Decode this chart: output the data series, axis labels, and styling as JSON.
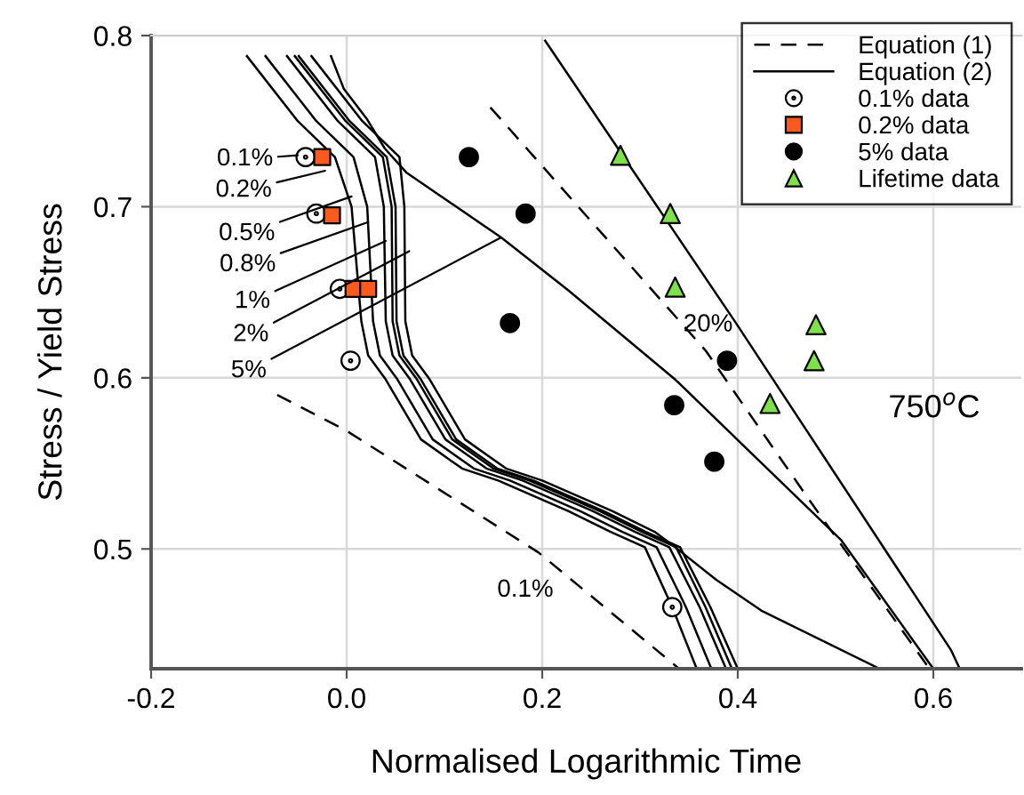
{
  "chart_data": {
    "type": "line",
    "xlabel": "Normalised Logarithmic Time",
    "ylabel": "Stress / Yield Stress",
    "xlim": [
      -0.2,
      0.69
    ],
    "ylim": [
      0.43,
      0.8
    ],
    "xticks": [
      -0.2,
      {
        "value": 0,
        "label": "0.0"
      },
      0.2,
      0.4,
      0.6
    ],
    "yticks": [
      0.5,
      0.6,
      0.7,
      0.8
    ],
    "grid": true,
    "legend": "top right",
    "series": [
      {
        "name": "Equation (1)",
        "line_style": "dashed",
        "color": "#000000",
        "x": [
          -0.071,
          0.0,
          0.196,
          0.34
        ],
        "values": [
          0.59,
          0.569,
          0.498,
          0.43
        ]
      },
      {
        "line_style": "dashed",
        "color": "#000000",
        "x": [
          0.147,
          0.367,
          0.469,
          0.596
        ],
        "values": [
          0.758,
          0.616,
          0.532,
          0.43
        ]
      },
      {
        "name": "Equation (2)",
        "line_style": "solid",
        "color": "#000000",
        "x": [
          -0.102,
          -0.05,
          -0.012,
          0.005,
          0.015,
          0.022,
          0.04,
          0.076,
          0.118,
          0.155,
          0.227,
          0.27,
          0.305,
          0.333,
          0.358
        ],
        "values": [
          0.788,
          0.75,
          0.729,
          0.7,
          0.633,
          0.613,
          0.599,
          0.564,
          0.547,
          0.54,
          0.522,
          0.51,
          0.501,
          0.466,
          0.43
        ]
      },
      {
        "line_style": "solid",
        "color": "#000000",
        "x": [
          -0.083,
          -0.031,
          0.007,
          0.021,
          0.027,
          0.034,
          0.052,
          0.088,
          0.13,
          0.167,
          0.239,
          0.282,
          0.317,
          0.347,
          0.373
        ],
        "values": [
          0.788,
          0.75,
          0.729,
          0.7,
          0.633,
          0.613,
          0.599,
          0.564,
          0.547,
          0.54,
          0.522,
          0.51,
          0.501,
          0.466,
          0.43
        ]
      },
      {
        "line_style": "solid",
        "color": "#000000",
        "x": [
          -0.061,
          -0.009,
          0.029,
          0.038,
          0.04,
          0.047,
          0.065,
          0.101,
          0.143,
          0.18,
          0.252,
          0.295,
          0.33,
          0.361,
          0.388
        ],
        "values": [
          0.788,
          0.75,
          0.729,
          0.7,
          0.633,
          0.613,
          0.599,
          0.564,
          0.547,
          0.54,
          0.522,
          0.51,
          0.501,
          0.466,
          0.43
        ]
      },
      {
        "line_style": "solid",
        "color": "#000000",
        "x": [
          -0.053,
          -0.001,
          0.037,
          0.046,
          0.047,
          0.054,
          0.072,
          0.108,
          0.15,
          0.187,
          0.259,
          0.302,
          0.337,
          0.367,
          0.394
        ],
        "values": [
          0.788,
          0.75,
          0.729,
          0.7,
          0.633,
          0.613,
          0.599,
          0.564,
          0.547,
          0.54,
          0.522,
          0.51,
          0.501,
          0.466,
          0.43
        ]
      },
      {
        "line_style": "solid",
        "color": "#000000",
        "x": [
          -0.049,
          0.003,
          0.041,
          0.05,
          0.051,
          0.058,
          0.076,
          0.112,
          0.154,
          0.191,
          0.263,
          0.306,
          0.341,
          0.372,
          0.4
        ],
        "values": [
          0.788,
          0.75,
          0.729,
          0.7,
          0.633,
          0.613,
          0.599,
          0.564,
          0.547,
          0.54,
          0.522,
          0.51,
          0.501,
          0.466,
          0.43
        ]
      },
      {
        "line_style": "solid",
        "color": "#000000",
        "x": [
          -0.036,
          0.016,
          0.054,
          0.059,
          0.06,
          0.067,
          0.085,
          0.121,
          0.163,
          0.2,
          0.272,
          0.315,
          0.336,
          0.378,
          0.424,
          0.545
        ],
        "values": [
          0.788,
          0.75,
          0.729,
          0.7,
          0.633,
          0.613,
          0.599,
          0.564,
          0.547,
          0.54,
          0.522,
          0.51,
          0.501,
          0.482,
          0.464,
          0.43
        ]
      },
      {
        "line_style": "solid",
        "color": "#000000",
        "x": [
          -0.016,
          -0.003,
          0.021,
          0.039,
          0.061,
          0.158,
          0.227,
          0.336,
          0.506,
          0.6
        ],
        "values": [
          0.788,
          0.769,
          0.751,
          0.734,
          0.72,
          0.682,
          0.651,
          0.599,
          0.505,
          0.43
        ]
      },
      {
        "line_style": "solid",
        "color": "#000000",
        "x": [
          0.203,
          0.397,
          0.618,
          0.627
        ],
        "values": [
          0.797,
          0.633,
          0.441,
          0.43
        ]
      },
      {
        "name": "0.1% data",
        "type": "scatter",
        "marker": "circle",
        "color": "#ffffff",
        "x": [
          -0.042,
          -0.031,
          -0.007,
          0.004,
          0.333
        ],
        "values": [
          0.729,
          0.696,
          0.652,
          0.61,
          0.466
        ]
      },
      {
        "name": "0.2% data",
        "type": "scatter",
        "marker": "square",
        "color": "#fa5a1e",
        "x": [
          -0.025,
          -0.015,
          0.007,
          0.022
        ],
        "values": [
          0.729,
          0.695,
          0.652,
          0.652
        ]
      },
      {
        "name": "5% data",
        "type": "scatter",
        "marker": "circle",
        "color": "#000000",
        "x": [
          0.125,
          0.183,
          0.167,
          0.389,
          0.335,
          0.376
        ],
        "values": [
          0.729,
          0.696,
          0.632,
          0.61,
          0.584,
          0.551
        ]
      },
      {
        "name": "Lifetime data",
        "type": "scatter",
        "marker": "triangle",
        "color": "#80e04b",
        "x": [
          0.28,
          0.331,
          0.336,
          0.48,
          0.478,
          0.433
        ],
        "values": [
          0.73,
          0.696,
          0.653,
          0.631,
          0.61,
          0.585
        ]
      }
    ],
    "annotations": [
      {
        "text": "0.1%",
        "x": -0.05,
        "y": 0.73
      },
      {
        "text": "0.2%",
        "x": -0.022,
        "y": 0.721
      },
      {
        "text": "0.5%",
        "x": 0.005,
        "y": 0.706
      },
      {
        "text": "0.8%",
        "x": 0.022,
        "y": 0.691
      },
      {
        "text": "1%",
        "x": 0.04,
        "y": 0.68
      },
      {
        "text": "2%",
        "x": 0.064,
        "y": 0.674
      },
      {
        "text": "5%",
        "x": 0.158,
        "y": 0.682
      },
      "0.1%",
      "20%",
      "750$^{o}$C"
    ]
  }
}
